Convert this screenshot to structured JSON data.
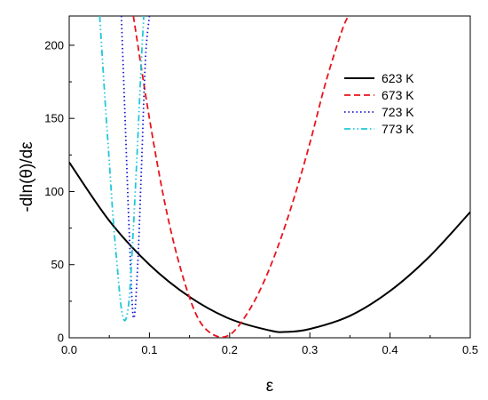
{
  "chart_data": {
    "type": "line",
    "xlabel": "ε",
    "ylabel": "-dln(θ)/dε",
    "xlim": [
      0.0,
      0.5
    ],
    "ylim": [
      0,
      220
    ],
    "xticks": [
      "0.0",
      "0.1",
      "0.2",
      "0.3",
      "0.4",
      "0.5"
    ],
    "yticks": [
      "0",
      "50",
      "100",
      "150",
      "200"
    ],
    "grid": false,
    "legend_position": "top-right",
    "series": [
      {
        "name": "623 K",
        "color": "#000000",
        "style": "solid",
        "x": [
          0.0,
          0.05,
          0.1,
          0.15,
          0.2,
          0.25,
          0.27,
          0.3,
          0.35,
          0.4,
          0.45,
          0.5
        ],
        "y": [
          120,
          80,
          50,
          28,
          13,
          5,
          4,
          6,
          15,
          32,
          56,
          86
        ]
      },
      {
        "name": "673 K",
        "color": "#e8141c",
        "style": "dashed",
        "x": [
          0.08,
          0.1,
          0.12,
          0.14,
          0.16,
          0.18,
          0.2,
          0.22,
          0.24,
          0.26,
          0.28,
          0.3,
          0.32,
          0.34,
          0.348
        ],
        "y": [
          220,
          150,
          90,
          45,
          14,
          2,
          2,
          15,
          35,
          62,
          95,
          133,
          175,
          210,
          220
        ]
      },
      {
        "name": "723 K",
        "color": "#1a1acc",
        "style": "dotted",
        "x": [
          0.065,
          0.07,
          0.075,
          0.08,
          0.085,
          0.09,
          0.095,
          0.1
        ],
        "y": [
          220,
          145,
          70,
          14,
          45,
          115,
          190,
          220
        ]
      },
      {
        "name": "773 K",
        "color": "#20c8d8",
        "style": "dashdotdot",
        "x": [
          0.038,
          0.045,
          0.05,
          0.055,
          0.06,
          0.065,
          0.07,
          0.075,
          0.08,
          0.085,
          0.09,
          0.093
        ],
        "y": [
          220,
          160,
          120,
          80,
          48,
          20,
          12,
          28,
          75,
          130,
          190,
          220
        ]
      }
    ]
  }
}
